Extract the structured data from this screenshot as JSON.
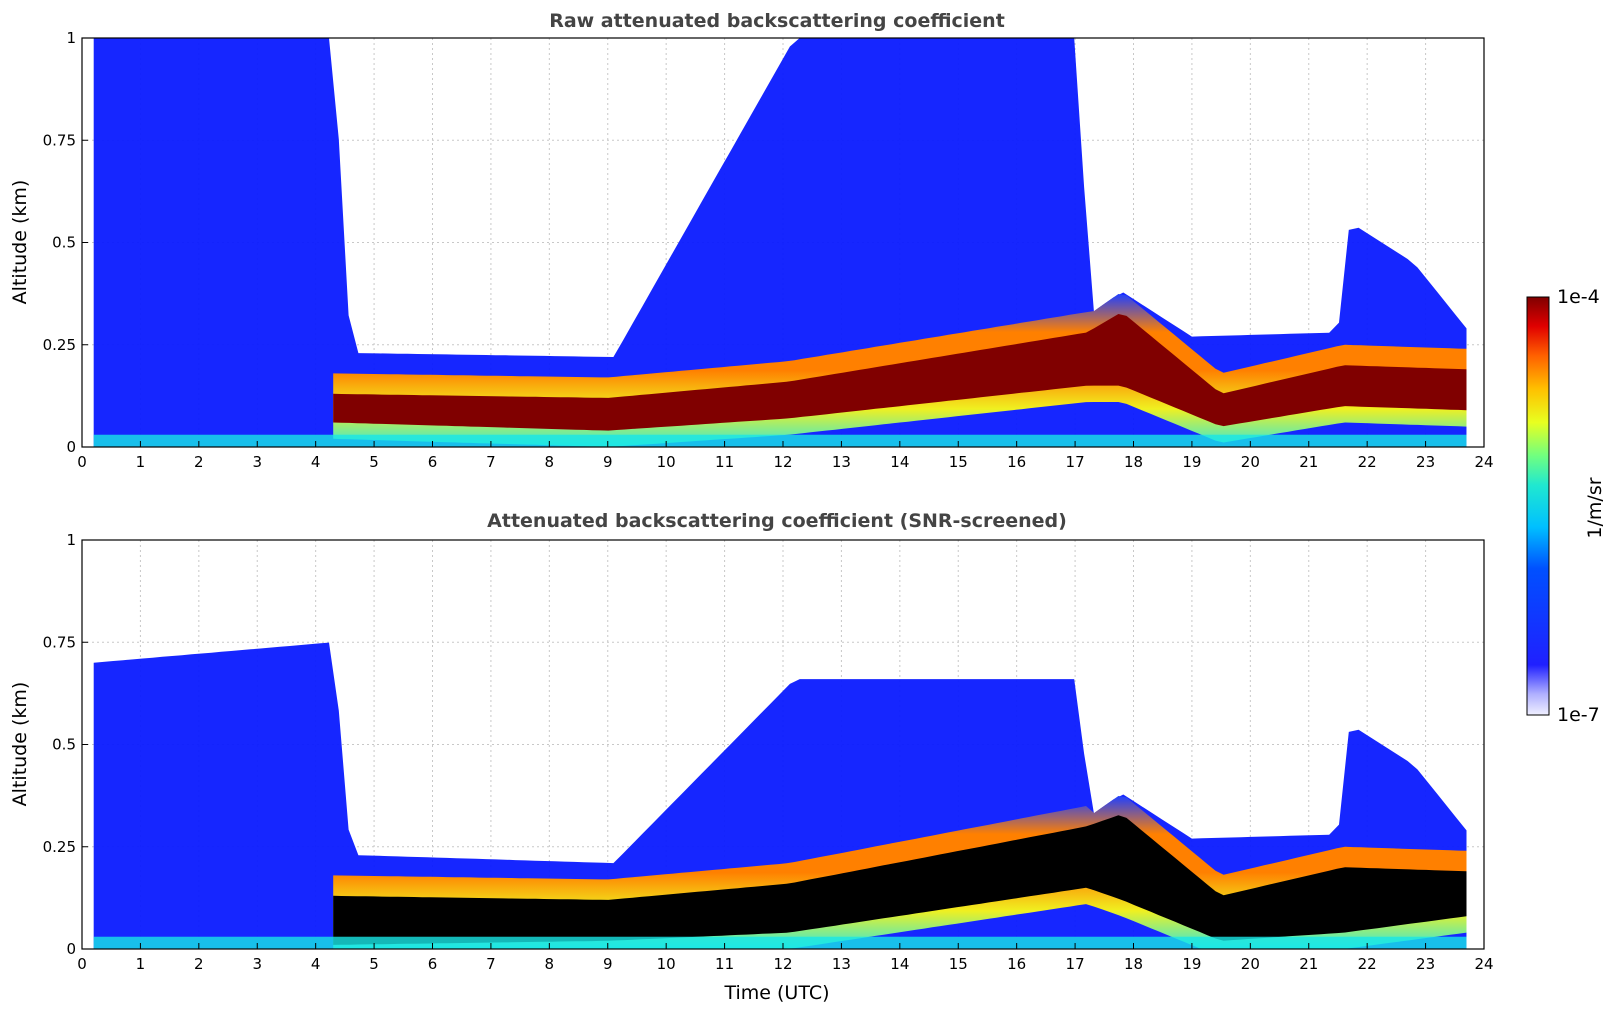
{
  "chart_data": [
    {
      "type": "heatmap",
      "title": "Raw attenuated backscattering coefficient",
      "xlabel": "",
      "ylabel": "Altitude (km)",
      "xlim": [
        0,
        24
      ],
      "ylim": [
        0,
        1
      ],
      "xticks": [
        0,
        1,
        2,
        3,
        4,
        5,
        6,
        7,
        8,
        9,
        10,
        11,
        12,
        13,
        14,
        15,
        16,
        17,
        18,
        19,
        20,
        21,
        22,
        23,
        24
      ],
      "yticks": [
        0,
        0.25,
        0.5,
        0.75,
        1
      ],
      "ytick_labels": [
        "0",
        "0.25",
        "0.5",
        "0.75",
        "1"
      ],
      "grid": true,
      "data_start_hour": 0.2,
      "data_end_hour": 23.7,
      "layer_top_km": [
        {
          "t": 0.2,
          "v": 1.0
        },
        {
          "t": 4.3,
          "v": 1.0
        },
        {
          "t": 4.6,
          "v": 0.23
        },
        {
          "t": 9.1,
          "v": 0.22
        },
        {
          "t": 12.2,
          "v": 1.0
        },
        {
          "t": 17.1,
          "v": 1.0
        },
        {
          "t": 17.2,
          "v": 0.32
        },
        {
          "t": 17.8,
          "v": 0.38
        },
        {
          "t": 19.0,
          "v": 0.27
        },
        {
          "t": 21.5,
          "v": 0.28
        },
        {
          "t": 21.7,
          "v": 0.55
        },
        {
          "t": 22.8,
          "v": 0.45
        },
        {
          "t": 23.7,
          "v": 0.29
        }
      ],
      "aerosol_core": [
        {
          "t": 4.3,
          "bottom": 0.06,
          "top": 0.13
        },
        {
          "t": 9.0,
          "bottom": 0.04,
          "top": 0.12
        },
        {
          "t": 12.1,
          "bottom": 0.07,
          "top": 0.16
        },
        {
          "t": 17.2,
          "bottom": 0.15,
          "top": 0.28
        },
        {
          "t": 17.8,
          "bottom": 0.15,
          "top": 0.33
        },
        {
          "t": 19.5,
          "bottom": 0.05,
          "top": 0.13
        },
        {
          "t": 21.6,
          "bottom": 0.1,
          "top": 0.2
        },
        {
          "t": 23.7,
          "bottom": 0.09,
          "top": 0.19
        }
      ]
    },
    {
      "type": "heatmap",
      "title": "Attenuated backscattering coefficient (SNR-screened)",
      "xlabel": "Time (UTC)",
      "ylabel": "Altitude (km)",
      "xlim": [
        0,
        24
      ],
      "ylim": [
        0,
        1
      ],
      "xticks": [
        0,
        1,
        2,
        3,
        4,
        5,
        6,
        7,
        8,
        9,
        10,
        11,
        12,
        13,
        14,
        15,
        16,
        17,
        18,
        19,
        20,
        21,
        22,
        23,
        24
      ],
      "yticks": [
        0,
        0.25,
        0.5,
        0.75,
        1
      ],
      "ytick_labels": [
        "0",
        "0.25",
        "0.5",
        "0.75",
        "1"
      ],
      "grid": true,
      "data_start_hour": 0.2,
      "data_end_hour": 23.7,
      "layer_top_km": [
        {
          "t": 0.2,
          "v": 0.7
        },
        {
          "t": 4.3,
          "v": 0.75
        },
        {
          "t": 4.6,
          "v": 0.23
        },
        {
          "t": 9.1,
          "v": 0.21
        },
        {
          "t": 12.2,
          "v": 0.66
        },
        {
          "t": 17.1,
          "v": 0.66
        },
        {
          "t": 17.2,
          "v": 0.32
        },
        {
          "t": 17.8,
          "v": 0.38
        },
        {
          "t": 19.0,
          "v": 0.27
        },
        {
          "t": 21.5,
          "v": 0.28
        },
        {
          "t": 21.7,
          "v": 0.55
        },
        {
          "t": 22.8,
          "v": 0.45
        },
        {
          "t": 23.7,
          "v": 0.29
        }
      ],
      "saturated_core": [
        {
          "t": 4.3,
          "bottom": 0.01,
          "top": 0.13
        },
        {
          "t": 9.0,
          "bottom": 0.02,
          "top": 0.12
        },
        {
          "t": 12.1,
          "bottom": 0.04,
          "top": 0.16
        },
        {
          "t": 17.2,
          "bottom": 0.15,
          "top": 0.3
        },
        {
          "t": 17.8,
          "bottom": 0.12,
          "top": 0.33
        },
        {
          "t": 19.5,
          "bottom": 0.02,
          "top": 0.13
        },
        {
          "t": 21.6,
          "bottom": 0.04,
          "top": 0.2
        },
        {
          "t": 23.7,
          "bottom": 0.08,
          "top": 0.19
        }
      ]
    }
  ],
  "colorbar": {
    "label": "1/m/sr",
    "max_label": "1e-4",
    "min_label": "1e-7",
    "colormap": "jet"
  },
  "colors": {
    "blue": "#0a1aff",
    "cyan": "#19e6e6",
    "yellow": "#f0f010",
    "orange": "#ff8000",
    "darkred": "#800000",
    "black": "#000000"
  }
}
